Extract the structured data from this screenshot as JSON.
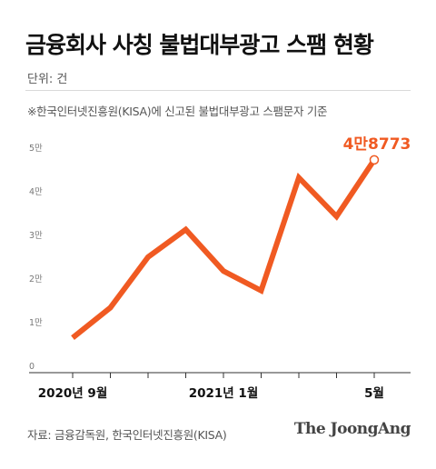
{
  "header": {
    "title": "금융회사 사칭 불법대부광고 스팸 현황",
    "unit": "단위: 건",
    "note": "※한국인터넷진흥원(KISA)에 신고된 불법대부광고 스팸문자 기준"
  },
  "footer": {
    "source": "자료: 금융감독원, 한국인터넷진흥원(KISA)",
    "brand": "The JoongAng"
  },
  "chart_data": {
    "type": "line",
    "title": "금융회사 사칭 불법대부광고 스팸 현황",
    "ylabel": "",
    "xlabel": "",
    "ylim": [
      0,
      50000
    ],
    "y_ticks": [
      {
        "value": 0,
        "label": "0"
      },
      {
        "value": 10000,
        "label": "1만"
      },
      {
        "value": 20000,
        "label": "2만"
      },
      {
        "value": 30000,
        "label": "3만"
      },
      {
        "value": 40000,
        "label": "4만"
      },
      {
        "value": 50000,
        "label": "5만"
      }
    ],
    "x": [
      "2020-09",
      "2020-10",
      "2020-11",
      "2020-12",
      "2021-01",
      "2021-02",
      "2021-03",
      "2021-04",
      "2021-05"
    ],
    "x_tick_labels": [
      "2020년 9월",
      "",
      "",
      "",
      "2021년 1월",
      "",
      "",
      "",
      "5월"
    ],
    "series": [
      {
        "values": [
          8000,
          14900,
          26500,
          32800,
          23300,
          18800,
          44700,
          35800,
          48773
        ]
      }
    ],
    "annotation": {
      "index": 8,
      "label": "4만8773"
    },
    "line_color": "#f05a22",
    "grid": false
  }
}
